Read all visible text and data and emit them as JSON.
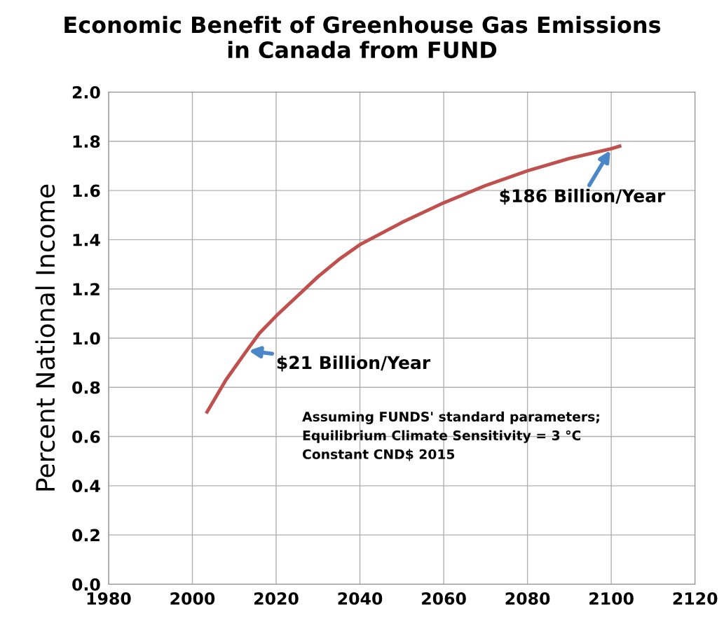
{
  "chart_data": {
    "type": "line",
    "title": "Economic Benefit of Greenhouse Gas Emissions\nin Canada from FUND",
    "ylabel": "Percent National Income",
    "series": [
      {
        "color": "#c0504d",
        "x": [
          2003.5,
          2008,
          2013,
          2016,
          2020,
          2025,
          2030,
          2035,
          2040,
          2050,
          2060,
          2070,
          2080,
          2090,
          2100,
          2102
        ],
        "values": [
          0.7,
          0.83,
          0.95,
          1.02,
          1.09,
          1.17,
          1.25,
          1.32,
          1.38,
          1.47,
          1.55,
          1.62,
          1.68,
          1.73,
          1.77,
          1.78
        ]
      }
    ],
    "xlim": [
      1980,
      2120
    ],
    "xticks": [
      1980,
      2000,
      2020,
      2040,
      2060,
      2080,
      2100,
      2120
    ],
    "ylim": [
      0,
      2.0
    ],
    "yticks": [
      {
        "value": 0,
        "label": "0.0"
      },
      0.2,
      0.4,
      0.6,
      0.8,
      {
        "value": 1.0,
        "label": "1.0"
      },
      1.2,
      1.4,
      1.6,
      1.8,
      {
        "value": 2.0,
        "label": "2.0"
      }
    ],
    "grid": true,
    "legend": false,
    "line_style": "solid",
    "marker": "none",
    "annotations": [
      {
        "text": "$21 Billion/Year",
        "x": 2013,
        "y": 0.95
      },
      {
        "text": "$186 Billion/Year",
        "x": 2100,
        "y": 1.77
      },
      "Assuming FUNDS' standard parameters;\nEquilibrium Climate Sensitivity = 3 °C\nConstant CND$ 2015"
    ]
  }
}
